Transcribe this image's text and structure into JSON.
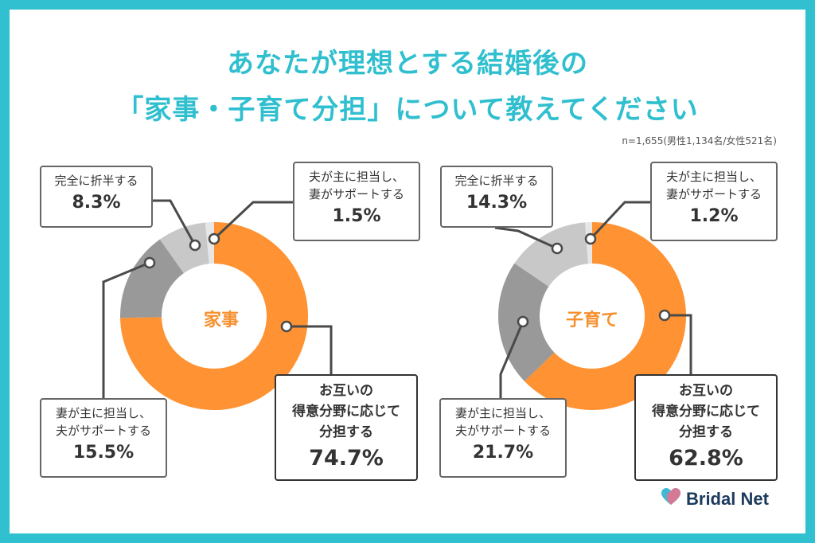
{
  "title_line1": "あなたが理想とする結婚後の",
  "title_line2": "「家事・子育て分担」について教えてください",
  "sample_note": "n=1,655(男性1,134名/女性521名)",
  "colors": {
    "equal_share": "#ff9232",
    "wife_main": "#999999",
    "half": "#c8c8c8",
    "husband_main": "#e6e6e6",
    "title": "#2fbfcf"
  },
  "chart_data": [
    {
      "type": "pie",
      "center_label": "家事",
      "categories": [
        "お互いの得意分野に応じて分担する",
        "妻が主に担当し、夫がサポートする",
        "完全に折半する",
        "夫が主に担当し、妻がサポートする"
      ],
      "values": [
        74.7,
        15.5,
        8.3,
        1.5
      ],
      "labels": [
        {
          "lines": [
            "お互いの",
            "得意分野に応じて",
            "分担する"
          ],
          "value": "74.7%"
        },
        {
          "lines": [
            "妻が主に担当し、",
            "夫がサポートする"
          ],
          "value": "15.5%"
        },
        {
          "lines": [
            "完全に折半する"
          ],
          "value": "8.3%"
        },
        {
          "lines": [
            "夫が主に担当し、",
            "妻がサポートする"
          ],
          "value": "1.5%"
        }
      ]
    },
    {
      "type": "pie",
      "center_label": "子育て",
      "categories": [
        "お互いの得意分野に応じて分担する",
        "妻が主に担当し、夫がサポートする",
        "完全に折半する",
        "夫が主に担当し、妻がサポートする"
      ],
      "values": [
        62.8,
        21.7,
        14.3,
        1.2
      ],
      "labels": [
        {
          "lines": [
            "お互いの",
            "得意分野に応じて",
            "分担する"
          ],
          "value": "62.8%"
        },
        {
          "lines": [
            "妻が主に担当し、",
            "夫がサポートする"
          ],
          "value": "21.7%"
        },
        {
          "lines": [
            "完全に折半する"
          ],
          "value": "14.3%"
        },
        {
          "lines": [
            "夫が主に担当し、",
            "妻がサポートする"
          ],
          "value": "1.2%"
        }
      ]
    }
  ],
  "brand": {
    "name": "Bridal Net",
    "icon": "heart-logo-icon"
  }
}
